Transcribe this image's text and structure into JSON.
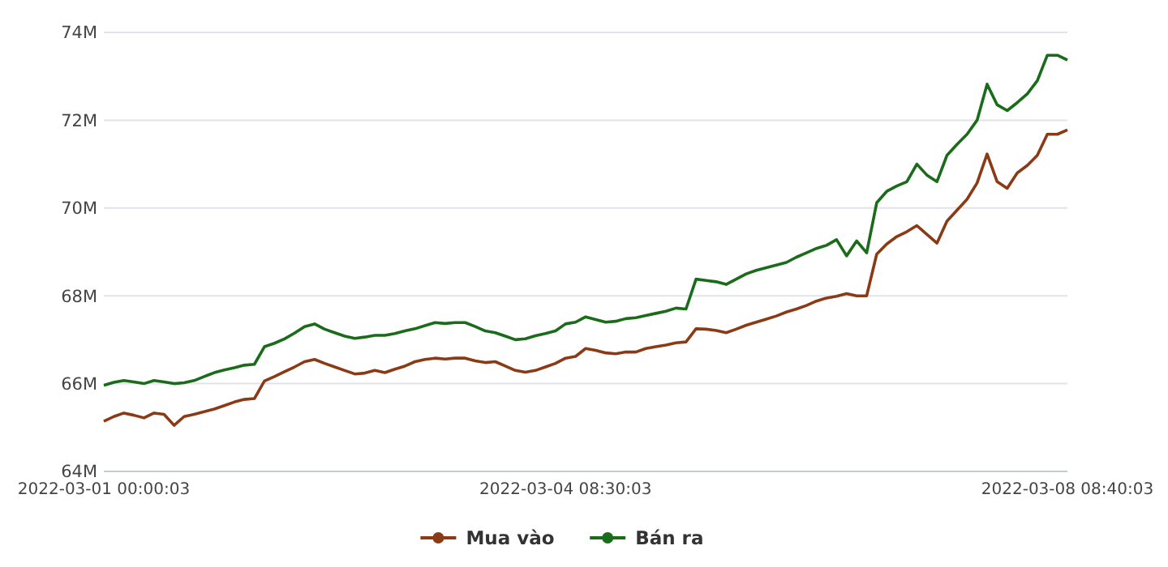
{
  "chart_data": {
    "type": "line",
    "categories": [
      "2022-03-01 00:00:03",
      null,
      null,
      null,
      null,
      null,
      null,
      null,
      null,
      null,
      null,
      null,
      null,
      null,
      null,
      null,
      null,
      null,
      null,
      null,
      null,
      null,
      null,
      null,
      null,
      null,
      null,
      null,
      null,
      null,
      null,
      null,
      null,
      null,
      null,
      null,
      null,
      null,
      null,
      null,
      null,
      null,
      null,
      null,
      null,
      null,
      "2022-03-04 08:30:03",
      null,
      null,
      null,
      null,
      null,
      null,
      null,
      null,
      null,
      null,
      null,
      null,
      null,
      null,
      null,
      null,
      null,
      null,
      null,
      null,
      null,
      null,
      null,
      null,
      null,
      null,
      null,
      null,
      null,
      null,
      null,
      null,
      null,
      null,
      null,
      null,
      null,
      null,
      null,
      null,
      null,
      null,
      null,
      null,
      null,
      null,
      null,
      null,
      null,
      "2022-03-08 08:40:03"
    ],
    "series": [
      {
        "name": "Mua vào",
        "color": "#8b3a16",
        "values": [
          65.14,
          65.25,
          65.33,
          65.28,
          65.22,
          65.33,
          65.3,
          65.05,
          65.25,
          65.3,
          65.36,
          65.42,
          65.5,
          65.58,
          65.64,
          65.66,
          66.06,
          66.16,
          66.27,
          66.38,
          66.5,
          66.55,
          66.46,
          66.38,
          66.3,
          66.22,
          66.24,
          66.3,
          66.25,
          66.33,
          66.4,
          66.5,
          66.55,
          66.58,
          66.56,
          66.58,
          66.58,
          66.52,
          66.48,
          66.5,
          66.4,
          66.3,
          66.26,
          66.3,
          66.38,
          66.46,
          66.58,
          66.62,
          66.8,
          66.76,
          66.7,
          66.68,
          66.72,
          66.72,
          66.8,
          66.84,
          66.88,
          66.93,
          66.95,
          67.25,
          67.24,
          67.21,
          67.16,
          67.24,
          67.33,
          67.4,
          67.47,
          67.54,
          67.63,
          67.7,
          67.78,
          67.88,
          67.95,
          67.99,
          68.05,
          68.0,
          68.0,
          68.95,
          69.18,
          69.35,
          69.46,
          69.6,
          69.4,
          69.2,
          69.7,
          69.95,
          70.2,
          70.57,
          71.23,
          70.6,
          70.45,
          70.8,
          70.97,
          71.2,
          71.68,
          71.68,
          71.78
        ]
      },
      {
        "name": "Bán ra",
        "color": "#1a6b1a",
        "values": [
          65.96,
          66.03,
          66.07,
          66.04,
          66.0,
          66.07,
          66.04,
          66.0,
          66.02,
          66.07,
          66.16,
          66.25,
          66.31,
          66.36,
          66.42,
          66.44,
          66.84,
          66.92,
          67.02,
          67.15,
          67.3,
          67.36,
          67.24,
          67.16,
          67.08,
          67.03,
          67.06,
          67.1,
          67.1,
          67.14,
          67.2,
          67.25,
          67.32,
          67.39,
          67.37,
          67.39,
          67.39,
          67.3,
          67.2,
          67.16,
          67.08,
          67.0,
          67.02,
          67.09,
          67.14,
          67.2,
          67.36,
          67.4,
          67.52,
          67.46,
          67.4,
          67.42,
          67.48,
          67.5,
          67.55,
          67.6,
          67.65,
          67.72,
          67.7,
          68.38,
          68.35,
          68.32,
          68.26,
          68.38,
          68.5,
          68.58,
          68.64,
          68.7,
          68.76,
          68.88,
          68.98,
          69.08,
          69.15,
          69.28,
          68.91,
          69.25,
          68.98,
          70.12,
          70.38,
          70.5,
          70.6,
          71.0,
          70.75,
          70.6,
          71.2,
          71.45,
          71.68,
          72.0,
          72.82,
          72.35,
          72.22,
          72.4,
          72.6,
          72.9,
          73.48,
          73.48,
          73.37
        ]
      }
    ],
    "ylim": [
      64,
      74
    ],
    "yticks": [
      {
        "value": 64,
        "label": "64M"
      },
      {
        "value": 66,
        "label": "66M"
      },
      {
        "value": 68,
        "label": "68M"
      },
      {
        "value": 70,
        "label": "70M"
      },
      {
        "value": 72,
        "label": "72M"
      },
      {
        "value": 74,
        "label": "74M"
      }
    ],
    "grid": "y",
    "legend": "bottom"
  }
}
